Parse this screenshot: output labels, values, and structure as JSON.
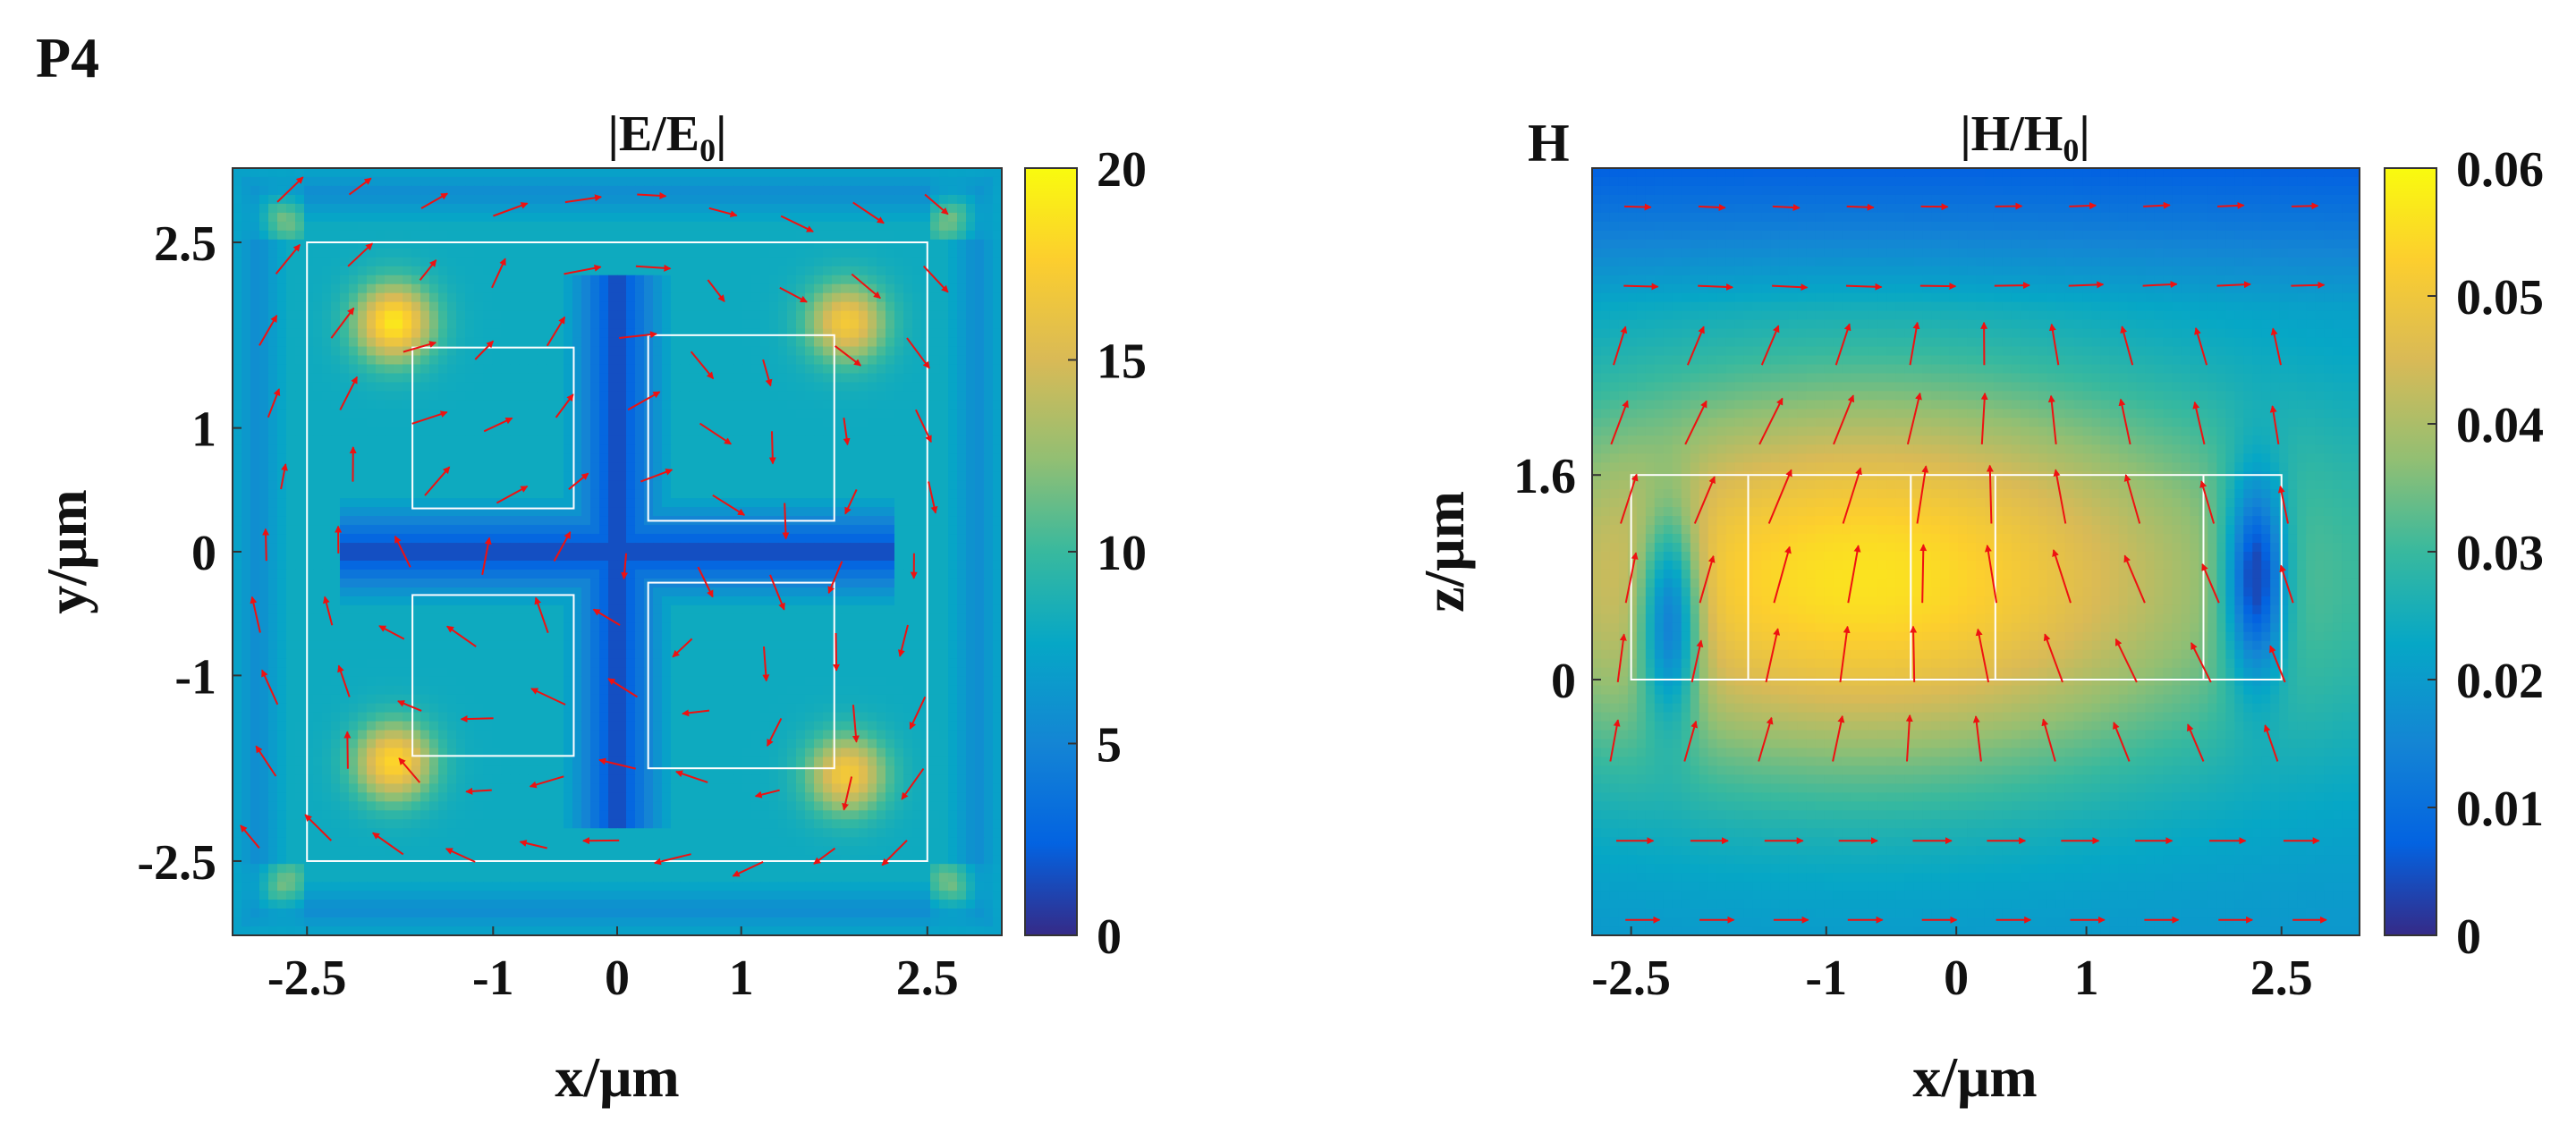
{
  "panel_label": "P4",
  "chart_data": [
    {
      "type": "heatmap",
      "subtype": "field map with vector arrows",
      "title": "|E/E0|",
      "title_main": "|E/E",
      "title_sub": "0",
      "title_end": "|",
      "xlabel": "x/μm",
      "ylabel": "y/μm",
      "xlim": [
        -3.1,
        3.1
      ],
      "ylim": [
        -3.1,
        3.1
      ],
      "xticks": [
        -2.5,
        -1,
        0,
        1,
        2.5
      ],
      "xtick_labels": [
        "-2.5",
        "-1",
        "0",
        "1",
        "2.5"
      ],
      "yticks": [
        2.5,
        1,
        0,
        -1,
        -2.5
      ],
      "ytick_labels": [
        "2.5",
        "1",
        "0",
        "-1",
        "-2.5"
      ],
      "colorbar": {
        "range": [
          0,
          20
        ],
        "ticks": [
          20,
          15,
          10,
          5,
          0
        ],
        "tick_labels": [
          "20",
          "15",
          "10",
          "5",
          "0"
        ],
        "colormap": "parula"
      },
      "structure_outlines": [
        {
          "x0": -2.5,
          "x1": 2.5,
          "y0": -2.5,
          "y1": 2.5
        },
        {
          "x0": -1.65,
          "x1": -0.35,
          "y0": 0.35,
          "y1": 1.65
        },
        {
          "x0": 0.25,
          "x1": 1.75,
          "y0": 0.25,
          "y1": 1.75
        },
        {
          "x0": -1.65,
          "x1": -0.35,
          "y0": -1.65,
          "y1": -0.35
        },
        {
          "x0": 0.25,
          "x1": 1.75,
          "y0": -1.75,
          "y1": -0.25
        }
      ],
      "hotspots": [
        {
          "x": -1.8,
          "y": 1.85,
          "value": 19
        },
        {
          "x": 1.85,
          "y": 1.85,
          "value": 17
        },
        {
          "x": -1.8,
          "y": -1.7,
          "value": 18
        },
        {
          "x": 1.85,
          "y": -1.8,
          "value": 17
        }
      ],
      "background_value": 8,
      "low_value_region": "cross along x=0 and y=0 (value ~1)",
      "arrow_color": "#ee1111",
      "outline_color": "#ffffff"
    },
    {
      "type": "heatmap",
      "subtype": "field map with vector arrows",
      "panel_letter": "H",
      "title": "|H/H0|",
      "title_main": "|H/H",
      "title_sub": "0",
      "title_end": "|",
      "xlabel": "x/μm",
      "ylabel": "z/μm",
      "xlim": [
        -2.8,
        3.1
      ],
      "ylim": [
        -2.0,
        4.0
      ],
      "xticks": [
        -2.5,
        -1,
        0,
        1,
        2.5
      ],
      "xtick_labels": [
        "-2.5",
        "-1",
        "0",
        "1",
        "2.5"
      ],
      "yticks": [
        1.6,
        0
      ],
      "ytick_labels": [
        "1.6",
        "0"
      ],
      "colorbar": {
        "range": [
          0,
          0.06
        ],
        "ticks": [
          0.06,
          0.05,
          0.04,
          0.03,
          0.02,
          0.01,
          0
        ],
        "tick_labels": [
          "0.06",
          "0.05",
          "0.04",
          "0.03",
          "0.02",
          "0.01",
          "0"
        ],
        "colormap": "parula"
      },
      "structure_outlines": [
        {
          "x0": -2.5,
          "x1": 2.5,
          "y0": 0,
          "y1": 1.6
        }
      ],
      "structure_dividers_x": [
        -1.6,
        -0.35,
        0.3,
        1.9
      ],
      "high_value_region": "x from -1.8 to 0.3, z around 0.8 (value ~0.05)",
      "low_value_spots": [
        {
          "x": -2.2,
          "y": 0.5,
          "value": 0.01
        },
        {
          "x": 2.3,
          "y": 0.8,
          "value": 0.012
        }
      ],
      "arrow_color": "#ee1111",
      "outline_color": "#ffffff"
    }
  ]
}
